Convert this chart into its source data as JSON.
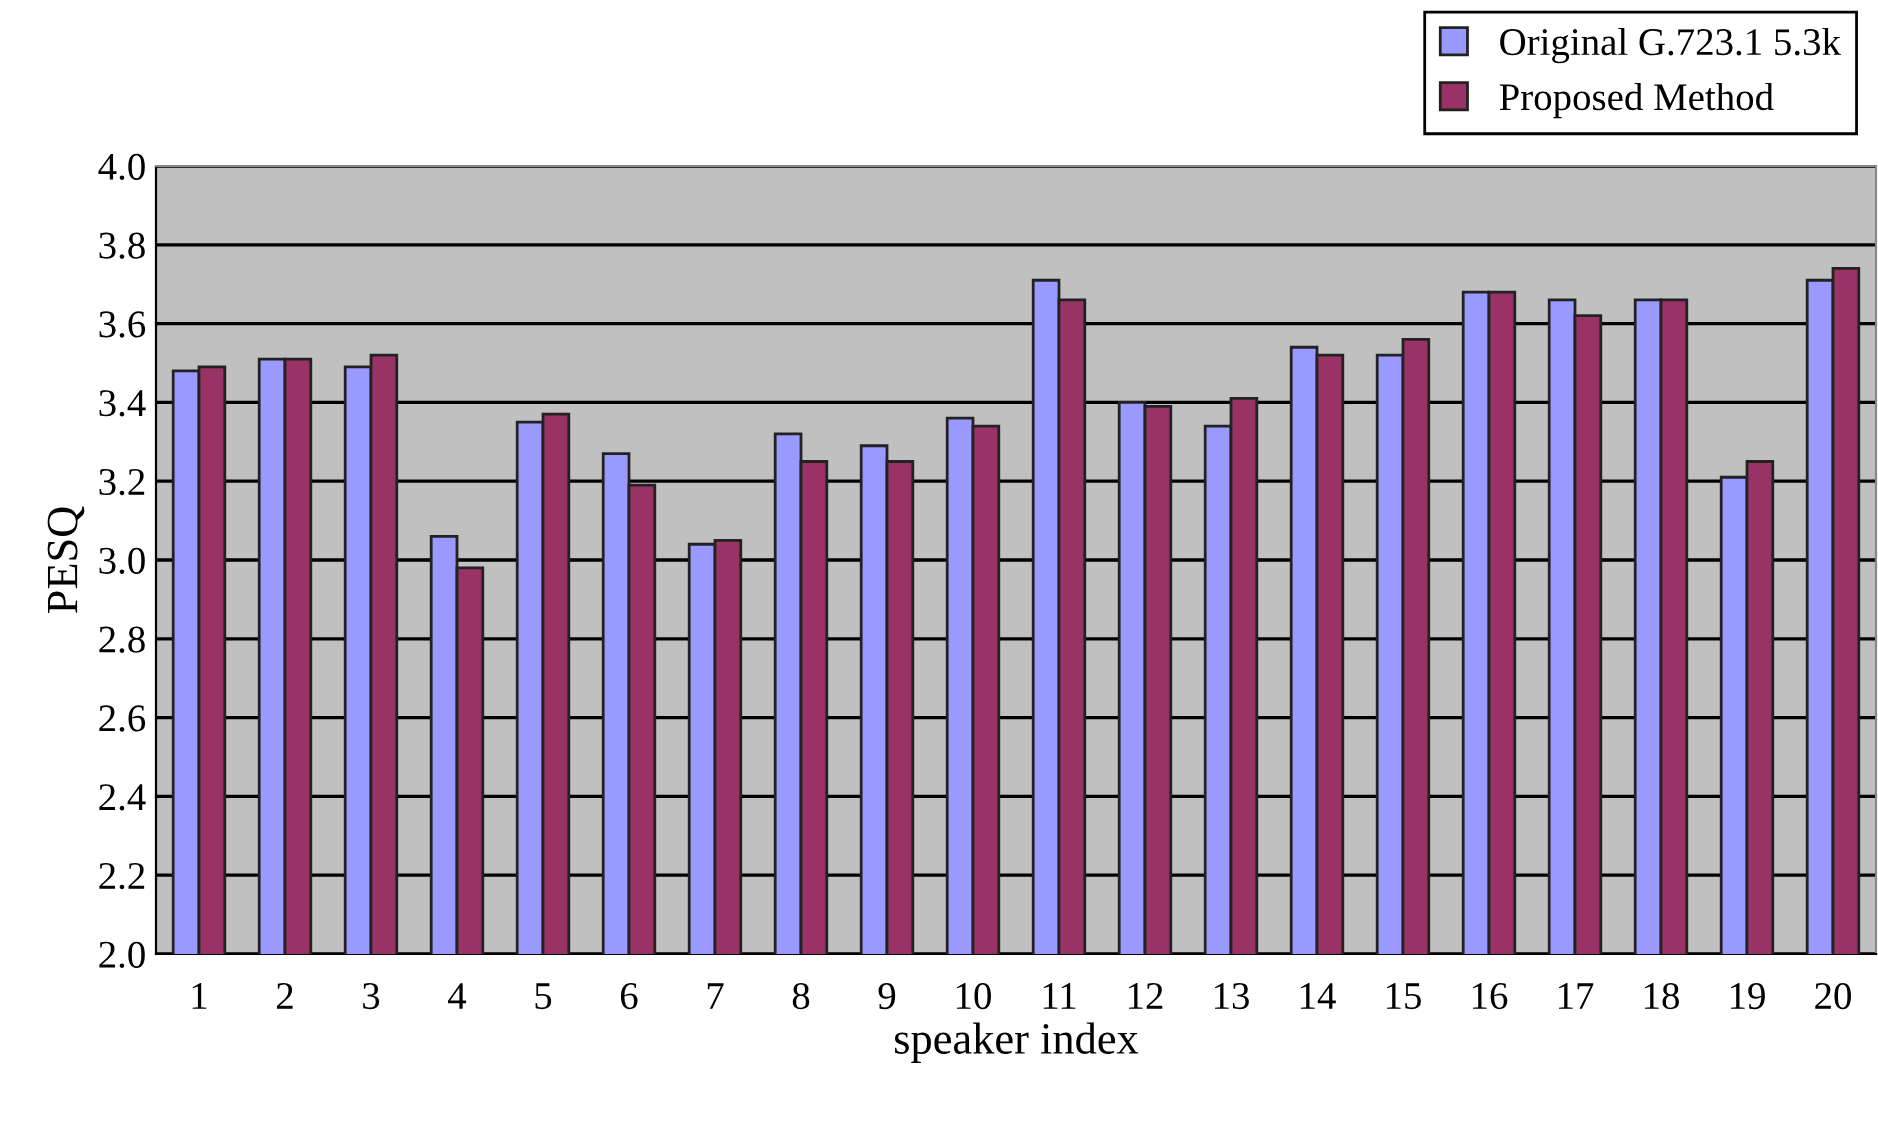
{
  "chart_data": {
    "type": "bar",
    "xlabel": "speaker index",
    "ylabel": "PESQ",
    "categories": [
      "1",
      "2",
      "3",
      "4",
      "5",
      "6",
      "7",
      "8",
      "9",
      "10",
      "11",
      "12",
      "13",
      "14",
      "15",
      "16",
      "17",
      "18",
      "19",
      "20"
    ],
    "series": [
      {
        "name": "Original G.723.1 5.3k",
        "color": "#9999ff",
        "values": [
          3.48,
          3.51,
          3.49,
          3.06,
          3.35,
          3.27,
          3.04,
          3.32,
          3.29,
          3.36,
          3.71,
          3.4,
          3.34,
          3.54,
          3.52,
          3.68,
          3.66,
          3.66,
          3.21,
          3.71
        ]
      },
      {
        "name": "Proposed Method",
        "color": "#993366",
        "values": [
          3.49,
          3.51,
          3.52,
          2.98,
          3.37,
          3.19,
          3.05,
          3.25,
          3.25,
          3.34,
          3.66,
          3.39,
          3.41,
          3.52,
          3.56,
          3.68,
          3.62,
          3.66,
          3.25,
          3.74
        ]
      }
    ],
    "ylim": [
      2.0,
      4.0
    ],
    "yticks": [
      {
        "value": 2.0,
        "label": "2.0"
      },
      {
        "value": 2.2,
        "label": "2.2"
      },
      {
        "value": 2.4,
        "label": "2.4"
      },
      {
        "value": 2.6,
        "label": "2.6"
      },
      {
        "value": 2.8,
        "label": "2.8"
      },
      {
        "value": 3.0,
        "label": "3.0"
      },
      {
        "value": 3.2,
        "label": "3.2"
      },
      {
        "value": 3.4,
        "label": "3.4"
      },
      {
        "value": 3.6,
        "label": "3.6"
      },
      {
        "value": 3.8,
        "label": "3.8"
      },
      {
        "value": 4.0,
        "label": "4.0"
      }
    ],
    "grid": "y",
    "legend": "top right"
  }
}
